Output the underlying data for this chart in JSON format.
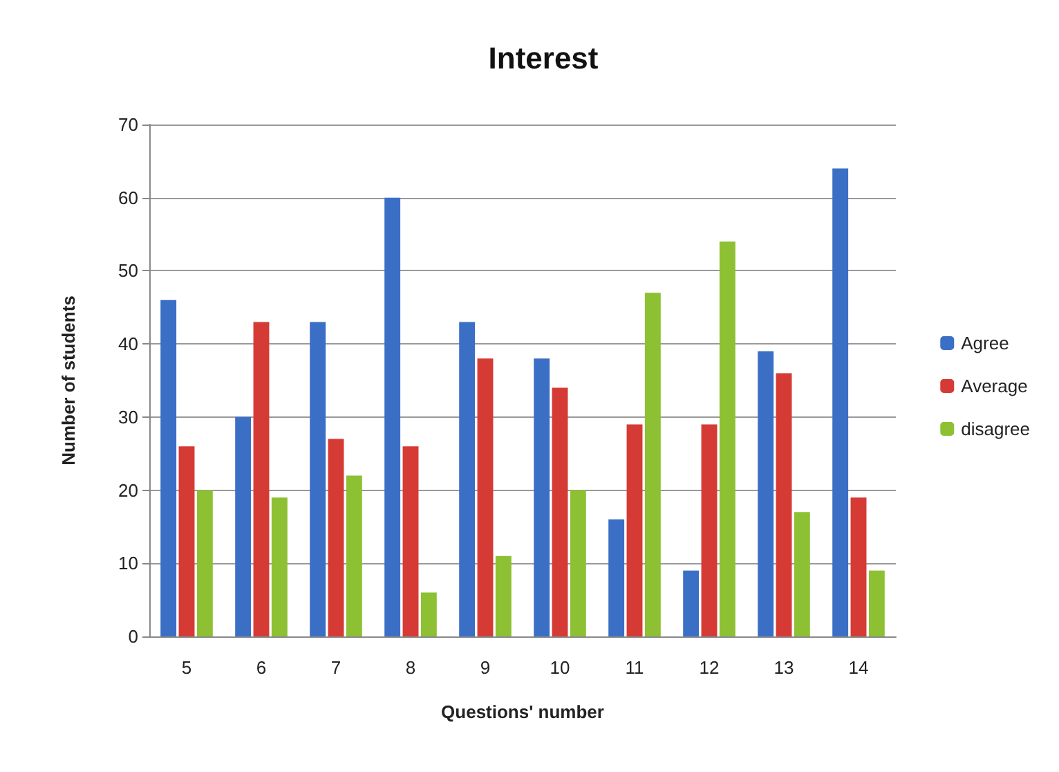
{
  "chart_data": {
    "type": "bar",
    "title": "Interest",
    "xlabel": "Questions' number",
    "ylabel": "Number of students",
    "categories": [
      "5",
      "6",
      "7",
      "8",
      "9",
      "10",
      "11",
      "12",
      "13",
      "14"
    ],
    "series": [
      {
        "name": "Agree",
        "color": "#3b6fc6",
        "values": [
          46,
          30,
          43,
          60,
          43,
          38,
          16,
          9,
          39,
          64
        ]
      },
      {
        "name": "Average",
        "color": "#d63a34",
        "values": [
          26,
          43,
          27,
          26,
          38,
          34,
          29,
          29,
          36,
          19
        ]
      },
      {
        "name": "disagree",
        "color": "#8dc033",
        "values": [
          20,
          19,
          22,
          6,
          11,
          20,
          47,
          54,
          17,
          9
        ]
      }
    ],
    "ylim": [
      0,
      70
    ],
    "yticks": [
      0,
      10,
      20,
      30,
      40,
      50,
      60,
      70
    ],
    "grid": "y",
    "legend": "right"
  }
}
